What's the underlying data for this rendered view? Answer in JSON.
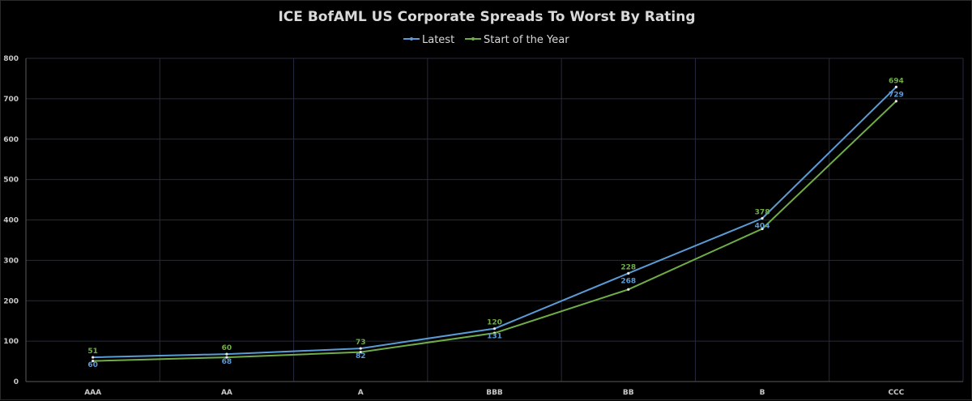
{
  "chart_data": {
    "type": "line",
    "title": "ICE BofAML US Corporate Spreads To Worst By Rating",
    "categories": [
      "AAA",
      "AA",
      "A",
      "BBB",
      "BB",
      "B",
      "CCC"
    ],
    "series": [
      {
        "name": "Latest",
        "color": "#5b9bd5",
        "values": [
          60,
          68,
          82,
          131,
          268,
          404,
          729
        ],
        "value_labels": [
          "60",
          "68",
          "82",
          "131",
          "268",
          "404",
          "729"
        ]
      },
      {
        "name": "Start of the Year",
        "color": "#70ad47",
        "values": [
          51,
          60,
          73,
          120,
          228,
          378,
          694
        ],
        "value_labels": [
          "51",
          "60",
          "73",
          "120",
          "228",
          "378",
          "694"
        ]
      }
    ],
    "ylim": [
      0,
      800
    ],
    "yticks": [
      "0",
      "100",
      "200",
      "300",
      "400",
      "500",
      "600",
      "700",
      "800"
    ],
    "xlabel": "",
    "ylabel": "",
    "grid": true,
    "legend_position": "top-center",
    "background": "#000000",
    "grid_color": "#262a40",
    "text_color": "#d9d9d9"
  }
}
